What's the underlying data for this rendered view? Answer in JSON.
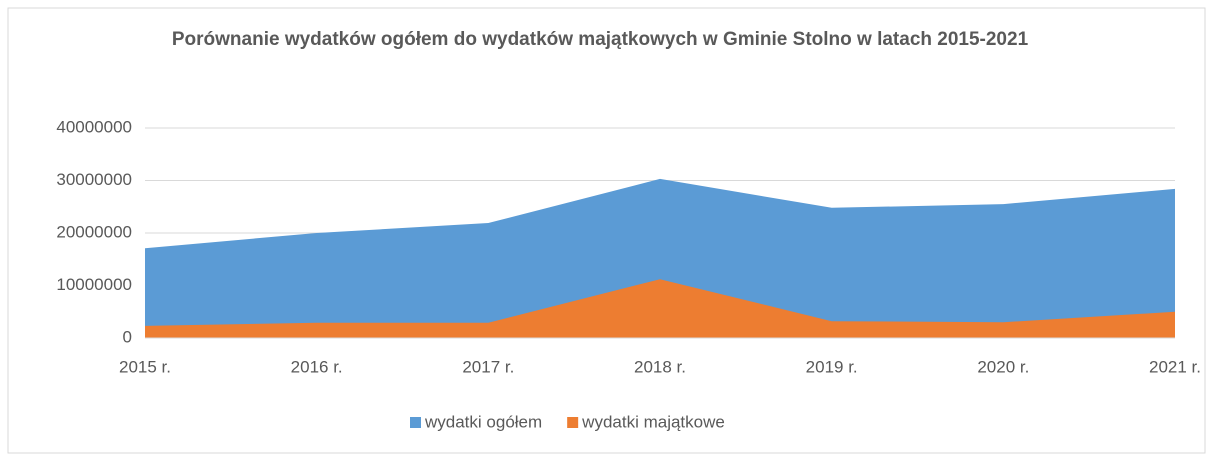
{
  "chart_data": {
    "type": "area",
    "title": "Porównanie wydatków ogółem do wydatków majątkowych w Gminie Stolno w latach 2015-2021",
    "categories": [
      "2015 r.",
      "2016 r.",
      "2017 r.",
      "2018 r.",
      "2019 r.",
      "2020 r.",
      "2021 r."
    ],
    "series": [
      {
        "name": "wydatki ogółem",
        "color": "#5b9bd5",
        "values": [
          17100000,
          20000000,
          21900000,
          30300000,
          24800000,
          25500000,
          28400000
        ]
      },
      {
        "name": "wydatki majątkowe",
        "color": "#ed7d31",
        "values": [
          2300000,
          2900000,
          2900000,
          11200000,
          3200000,
          3000000,
          5000000
        ]
      }
    ],
    "ylim": [
      0,
      40000000
    ],
    "yticks": [
      0,
      10000000,
      20000000,
      30000000,
      40000000
    ],
    "grid": true,
    "legend": "bottom"
  }
}
